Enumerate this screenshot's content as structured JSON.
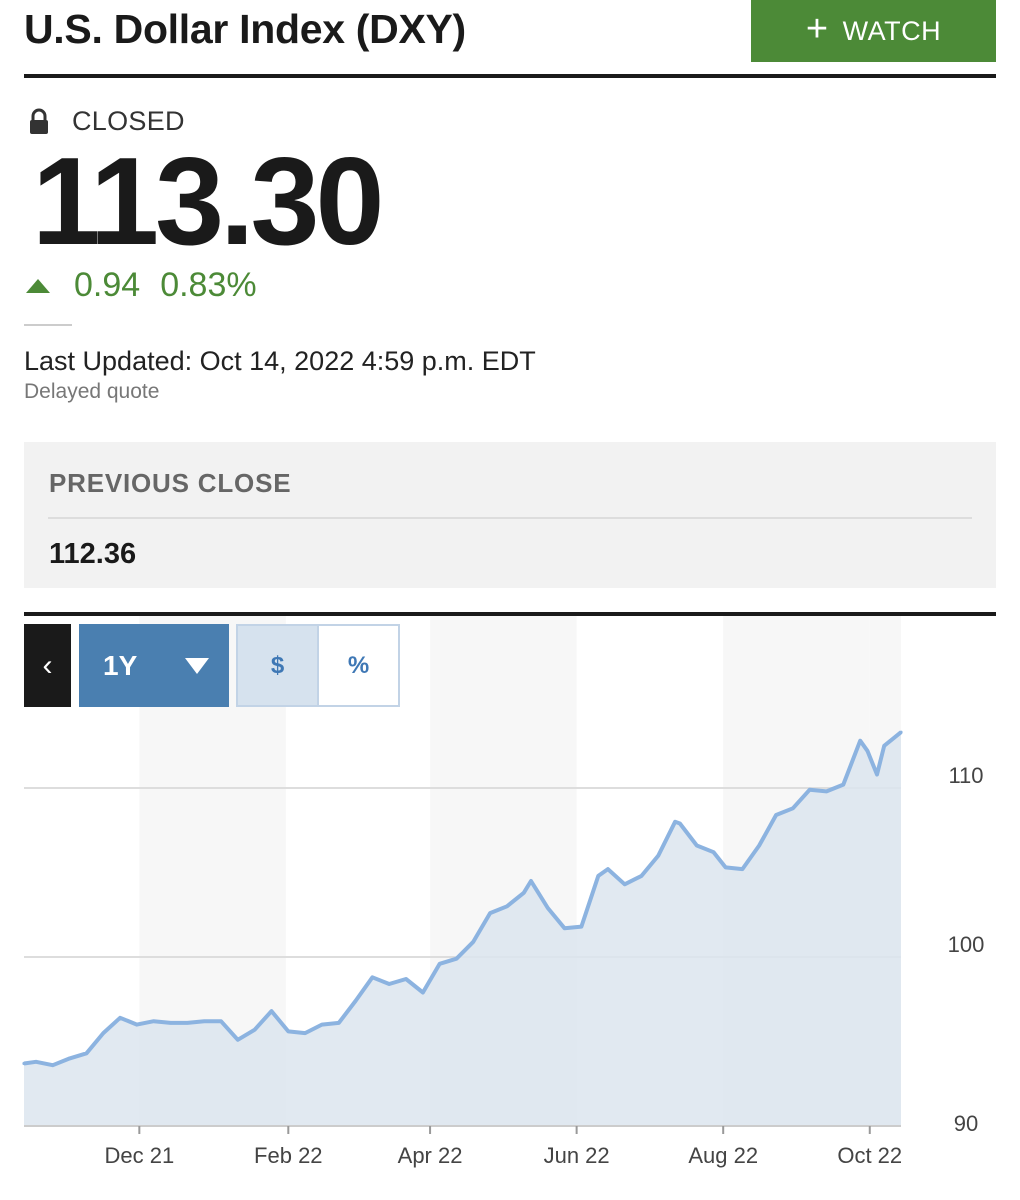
{
  "header": {
    "title": "U.S. Dollar Index (DXY)",
    "watch_label": "WATCH",
    "watch_icon": "plus-icon"
  },
  "quote": {
    "status": "CLOSED",
    "status_icon": "lock-icon",
    "price": "113.30",
    "change": "0.94",
    "change_pct": "0.83%",
    "change_direction": "up",
    "last_updated": "Last Updated: Oct 14, 2022 4:59 p.m. EDT",
    "delayed": "Delayed quote"
  },
  "previous_close": {
    "label": "PREVIOUS CLOSE",
    "value": "112.36"
  },
  "chart_controls": {
    "back_icon": "chevron-left-icon",
    "range": "1Y",
    "toggle_dollar": "$",
    "toggle_percent": "%",
    "active_toggle": "$"
  },
  "colors": {
    "accent_green": "#4c8a37",
    "range_blue": "#4a7fb0",
    "line_blue": "#8cb3e0",
    "area_fill": "#dce5ef"
  },
  "chart_data": {
    "type": "area",
    "title": "",
    "xlabel": "",
    "ylabel": "",
    "x_ticks": [
      "Dec 21",
      "Feb 22",
      "Apr 22",
      "Jun 22",
      "Aug 22",
      "Oct 22"
    ],
    "y_ticks": [
      "90",
      "100",
      "110"
    ],
    "ylim": [
      90,
      112.5
    ],
    "x": [
      "2021-10-14",
      "2021-10-19",
      "2021-10-26",
      "2021-11-02",
      "2021-11-09",
      "2021-11-16",
      "2021-11-23",
      "2021-11-30",
      "2021-12-07",
      "2021-12-14",
      "2021-12-21",
      "2021-12-28",
      "2022-01-04",
      "2022-01-11",
      "2022-01-18",
      "2022-01-25",
      "2022-02-01",
      "2022-02-08",
      "2022-02-15",
      "2022-02-22",
      "2022-03-01",
      "2022-03-08",
      "2022-03-15",
      "2022-03-22",
      "2022-03-29",
      "2022-04-05",
      "2022-04-12",
      "2022-04-19",
      "2022-04-26",
      "2022-05-03",
      "2022-05-10",
      "2022-05-13",
      "2022-05-20",
      "2022-05-27",
      "2022-06-03",
      "2022-06-10",
      "2022-06-14",
      "2022-06-21",
      "2022-06-28",
      "2022-07-05",
      "2022-07-12",
      "2022-07-14",
      "2022-07-21",
      "2022-07-28",
      "2022-08-02",
      "2022-08-09",
      "2022-08-16",
      "2022-08-23",
      "2022-08-30",
      "2022-09-06",
      "2022-09-13",
      "2022-09-20",
      "2022-09-27",
      "2022-09-30",
      "2022-10-04",
      "2022-10-07",
      "2022-10-14"
    ],
    "series": [
      {
        "values": [
          93.7,
          93.8,
          93.6,
          94.0,
          94.3,
          95.5,
          96.4,
          96.0,
          96.2,
          96.1,
          96.1,
          96.2,
          96.2,
          95.1,
          95.7,
          96.8,
          95.6,
          95.5,
          96.0,
          96.1,
          97.4,
          98.8,
          98.4,
          98.7,
          97.9,
          99.6,
          99.9,
          100.9,
          102.6,
          103.0,
          103.8,
          104.5,
          102.9,
          101.7,
          101.8,
          104.8,
          105.2,
          104.3,
          104.8,
          106.0,
          108.0,
          107.9,
          106.6,
          106.2,
          105.3,
          105.2,
          106.6,
          108.4,
          108.8,
          109.9,
          109.8,
          110.2,
          112.8,
          112.2,
          110.8,
          112.5,
          113.3
        ]
      }
    ]
  }
}
